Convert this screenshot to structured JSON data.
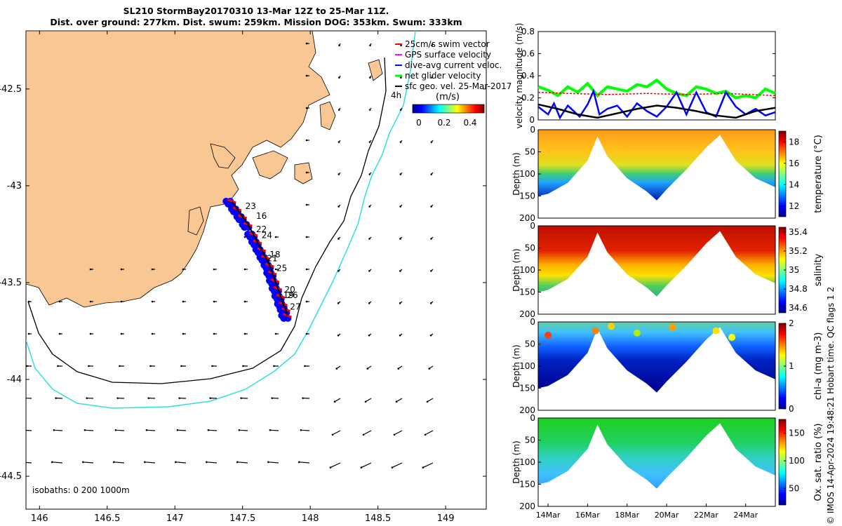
{
  "title": {
    "line1": "SL210 StormBay20170310 13-Mar 12Z to 25-Mar 11Z.",
    "line2": "Dist. over ground: 277km. Dist. swum: 259km. Mission DOG: 353km. Swum: 333km"
  },
  "credit": "© IMOS 14-Apr-2024 19:48:21 Hobart time. QC flags 1  2",
  "colors": {
    "land": "#f9c794",
    "isobath_200": "#000000",
    "isobath_1000": "#2ee0e0",
    "swim_vector": "#ff0000",
    "gps_velocity": "#ff00ff",
    "dive_avg": "#0000ff",
    "net_glider": "#00ff00",
    "sfc_geo": "#000000"
  },
  "chart_data": [
    {
      "id": "map",
      "type": "scatter",
      "xlim": [
        145.9,
        149.3
      ],
      "ylim": [
        -44.67,
        -42.2
      ],
      "xticks": [
        146,
        146.5,
        147,
        147.5,
        148,
        148.5,
        149
      ],
      "xtick_labels": [
        "146",
        "146.5",
        "147",
        "147.5",
        "148",
        "148.5",
        "149"
      ],
      "yticks": [
        -42.5,
        -43,
        -43.5,
        -44,
        -44.5
      ],
      "ytick_labels": [
        "-42.5",
        "-43",
        "-43.5",
        "-44",
        "-44.5"
      ],
      "legend": {
        "placement": "top-right",
        "entries": [
          {
            "name": "25cm/s swim vector",
            "color": "#ff0000"
          },
          {
            "name": "GPS surface velocity",
            "color": "#ff00ff"
          },
          {
            "name": "dive-avg current veloc.",
            "color": "#0000ff"
          },
          {
            "name": "net glider velocity",
            "color": "#00ff00"
          },
          {
            "name": "sfc geo. vel. 25-Mar-2017",
            "color": "#000000"
          }
        ]
      },
      "colorbar": {
        "title": "(m/s)",
        "ticks": [
          0,
          0.2,
          0.4
        ],
        "tick_labels": [
          "0",
          "0.2",
          "0.4"
        ],
        "range": [
          0,
          0.5
        ],
        "colormap": "jet"
      },
      "isobaths_label": "isobaths: 0   200  1000m",
      "isobath_depth_label": "4h",
      "track_labels": [
        {
          "text": "23",
          "x": 147.52,
          "y": -43.12
        },
        {
          "text": "16",
          "x": 147.6,
          "y": -43.17
        },
        {
          "text": "22",
          "x": 147.6,
          "y": -43.24
        },
        {
          "text": "24",
          "x": 147.64,
          "y": -43.27
        },
        {
          "text": "18",
          "x": 147.7,
          "y": -43.37
        },
        {
          "text": "21",
          "x": 147.68,
          "y": -43.39
        },
        {
          "text": "25",
          "x": 147.75,
          "y": -43.44
        },
        {
          "text": "20",
          "x": 147.81,
          "y": -43.55
        },
        {
          "text": "19",
          "x": 147.8,
          "y": -43.58
        },
        {
          "text": "26",
          "x": 147.83,
          "y": -43.58
        },
        {
          "text": "27",
          "x": 147.85,
          "y": -43.64
        }
      ],
      "track": {
        "lon": [
          147.42,
          147.46,
          147.5,
          147.54,
          147.58,
          147.61,
          147.64,
          147.67,
          147.7,
          147.72,
          147.74,
          147.76,
          147.78,
          147.8,
          147.82,
          147.83
        ],
        "lat": [
          -43.08,
          -43.12,
          -43.16,
          -43.2,
          -43.25,
          -43.29,
          -43.33,
          -43.37,
          -43.41,
          -43.45,
          -43.49,
          -43.53,
          -43.57,
          -43.61,
          -43.64,
          -43.67
        ]
      },
      "surface_vectors": {
        "u_v_scale_note": "sfc geo. vel. 25-Mar-2017"
      }
    },
    {
      "id": "velocity",
      "type": "line",
      "ylabel": "velocity magnitude (m/s)",
      "ylim": [
        0,
        0.8
      ],
      "yticks": [
        0,
        0.2,
        0.4,
        0.6,
        0.8
      ],
      "ytick_labels": [
        "0",
        "0.2",
        "0.4",
        "0.6",
        "0.8"
      ],
      "xlim": [
        13.5,
        25.5
      ],
      "series": [
        {
          "color": "#00ff00",
          "x": [
            13.5,
            14,
            14.5,
            15,
            15.5,
            16,
            16.5,
            17,
            17.5,
            18,
            18.5,
            19,
            19.5,
            20,
            20.5,
            21,
            21.5,
            22,
            22.5,
            23,
            23.5,
            24,
            24.5,
            25,
            25.5
          ],
          "values": [
            0.3,
            0.27,
            0.22,
            0.3,
            0.25,
            0.33,
            0.22,
            0.3,
            0.28,
            0.26,
            0.32,
            0.3,
            0.36,
            0.28,
            0.24,
            0.22,
            0.3,
            0.28,
            0.24,
            0.26,
            0.2,
            0.22,
            0.2,
            0.28,
            0.24
          ]
        },
        {
          "color": "#ff0000",
          "x": [
            13.5,
            15,
            17,
            19,
            21,
            23,
            25.5
          ],
          "values": [
            0.25,
            0.24,
            0.23,
            0.24,
            0.23,
            0.24,
            0.22
          ]
        },
        {
          "color": "#0000ff",
          "x": [
            13.5,
            14,
            14.3,
            14.6,
            15,
            15.3,
            15.6,
            16,
            16.3,
            16.6,
            17,
            17.5,
            18,
            18.5,
            19,
            19.5,
            20,
            20.5,
            21,
            21.5,
            22,
            22.5,
            23,
            23.5,
            24,
            24.5,
            25,
            25.5
          ],
          "values": [
            0.12,
            0.05,
            0.15,
            0.02,
            0.13,
            0.08,
            0.03,
            0.14,
            0.26,
            0.05,
            0.1,
            0.13,
            0.03,
            0.15,
            0.08,
            0.03,
            0.12,
            0.25,
            0.05,
            0.25,
            0.07,
            0.03,
            0.25,
            0.12,
            0.05,
            0.1,
            0.04,
            0.07
          ]
        },
        {
          "color": "#000000",
          "x": [
            13.5,
            14.5,
            15.5,
            16.5,
            17.5,
            18.5,
            19.5,
            20.5,
            21.5,
            22.5,
            23.5,
            24.5,
            25.5
          ],
          "values": [
            0.14,
            0.1,
            0.05,
            0.02,
            0.06,
            0.1,
            0.13,
            0.11,
            0.08,
            0.04,
            0.02,
            0.08,
            0.11
          ]
        }
      ]
    },
    {
      "id": "temperature",
      "type": "heatmap",
      "ylabel": "Depth (m)",
      "ylim": [
        200,
        0
      ],
      "yticks": [
        0,
        50,
        100,
        150,
        200
      ],
      "ytick_labels": [
        "0",
        "50",
        "100",
        "150",
        "200"
      ],
      "colorbar": {
        "label": "temperature (°C)",
        "range": [
          11,
          19
        ],
        "ticks": [
          12,
          14,
          16,
          18
        ],
        "tick_labels": [
          "12",
          "14",
          "16",
          "18"
        ],
        "colormap": "jet"
      }
    },
    {
      "id": "salinity",
      "type": "heatmap",
      "ylabel": "Depth (m)",
      "ylim": [
        200,
        0
      ],
      "yticks": [
        0,
        50,
        100,
        150,
        200
      ],
      "ytick_labels": [
        "0",
        "50",
        "100",
        "150",
        "200"
      ],
      "colorbar": {
        "label": "salinity",
        "range": [
          34.55,
          35.45
        ],
        "ticks": [
          34.6,
          34.8,
          35,
          35.2,
          35.4
        ],
        "tick_labels": [
          "34.6",
          "34.8",
          "35",
          "35.2",
          "35.4"
        ],
        "colormap": "jet"
      }
    },
    {
      "id": "chla",
      "type": "heatmap",
      "ylabel": "Depth (m)",
      "ylim": [
        200,
        0
      ],
      "yticks": [
        0,
        50,
        100,
        150,
        200
      ],
      "ytick_labels": [
        "0",
        "50",
        "100",
        "150",
        "200"
      ],
      "colorbar": {
        "label": "chl-a (mg m-3)",
        "range": [
          0,
          2
        ],
        "ticks": [
          0,
          1,
          2
        ],
        "tick_labels": [
          "0",
          "1",
          "2"
        ],
        "colormap": "jet"
      }
    },
    {
      "id": "oxygen",
      "type": "heatmap",
      "ylabel": "Depth (m)",
      "ylim": [
        200,
        0
      ],
      "yticks": [
        0,
        50,
        100,
        150,
        200
      ],
      "ytick_labels": [
        "0",
        "50",
        "100",
        "150",
        "200"
      ],
      "xticks": [
        14,
        16,
        18,
        20,
        22,
        24
      ],
      "xtick_labels": [
        "14Mar",
        "16Mar",
        "18Mar",
        "20Mar",
        "22Mar",
        "24Mar"
      ],
      "colorbar": {
        "label": "Ox. sat. ratio (%)",
        "range": [
          20,
          175
        ],
        "ticks": [
          50,
          100,
          150
        ],
        "tick_labels": [
          "50",
          "100",
          "150"
        ],
        "colormap": "jet"
      }
    }
  ]
}
